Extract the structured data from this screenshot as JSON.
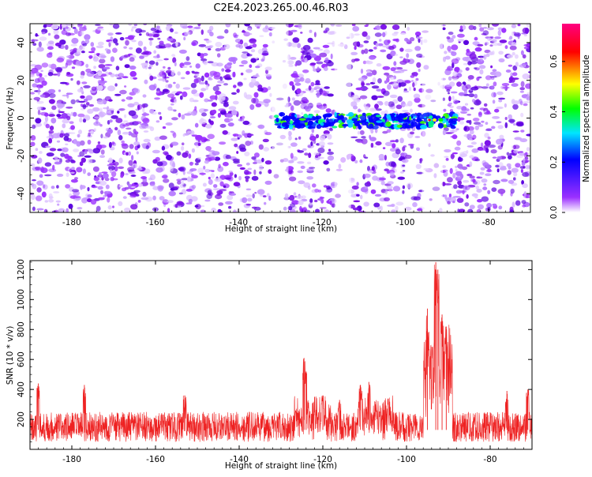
{
  "title": "C2E4.2023.265.00.46.R03",
  "chart_data": [
    {
      "type": "heatmap",
      "xlabel": "Height of straight line (km)",
      "ylabel": "Frequency (Hz)",
      "xlim": [
        -190,
        -70
      ],
      "ylim": [
        -50,
        50
      ],
      "x_ticks": [
        -180,
        -160,
        -140,
        -120,
        -100,
        -80
      ],
      "y_ticks": [
        -40,
        -20,
        0,
        20,
        40
      ],
      "grid": false,
      "background_noise_colour": "#7a10e8",
      "data_gaps_km": [
        [
          -132,
          -128
        ],
        [
          -117,
          -113
        ],
        [
          -96,
          -91
        ]
      ],
      "signal_band": {
        "frequency_hz": [
          -5,
          2
        ],
        "height_km": [
          -131,
          -88
        ],
        "peak_height_km": -93,
        "peak_frequency_hz": -1
      },
      "colorbar": {
        "label": "Normalized spectral amplitude",
        "range": [
          0.0,
          0.75
        ],
        "ticks": [
          "0.0",
          "0.2",
          "0.4",
          "0.6"
        ],
        "tick_values": [
          0.0,
          0.2,
          0.4,
          0.6
        ],
        "colors": [
          "#ffffff",
          "#9b30ff",
          "#0000ff",
          "#00e5ff",
          "#00ff00",
          "#ffff00",
          "#ff0000",
          "#ff0080"
        ]
      }
    },
    {
      "type": "line",
      "xlabel": "Height of straight line (km)",
      "ylabel": "SNR (10 * v/v)",
      "xlim": [
        -190,
        -70
      ],
      "ylim": [
        0,
        1260
      ],
      "x_ticks": [
        -180,
        -160,
        -140,
        -120,
        -100,
        -80
      ],
      "y_ticks": [
        200,
        400,
        600,
        800,
        1000,
        1200
      ],
      "grid": false,
      "series_color": "#ee2222",
      "baseline_snr": [
        50,
        250
      ],
      "peaks": [
        {
          "x": -188,
          "y": 440
        },
        {
          "x": -177,
          "y": 430
        },
        {
          "x": -153,
          "y": 360
        },
        {
          "x": -124.5,
          "y": 610
        },
        {
          "x": -124,
          "y": 520
        },
        {
          "x": -120,
          "y": 360
        },
        {
          "x": -116,
          "y": 330
        },
        {
          "x": -111,
          "y": 430
        },
        {
          "x": -109,
          "y": 450
        },
        {
          "x": -95,
          "y": 940
        },
        {
          "x": -93,
          "y": 1250
        },
        {
          "x": -92.5,
          "y": 1200
        },
        {
          "x": -91.5,
          "y": 900
        },
        {
          "x": -90.5,
          "y": 820
        },
        {
          "x": -76,
          "y": 390
        },
        {
          "x": -71,
          "y": 400
        }
      ]
    }
  ]
}
